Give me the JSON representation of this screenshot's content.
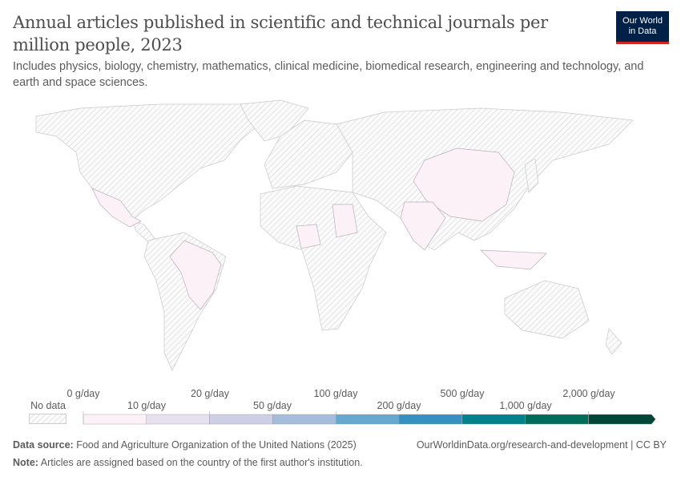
{
  "header": {
    "title": "Annual articles published in scientific and technical journals per million people, 2023",
    "subtitle": "Includes physics, biology, chemistry, mathematics, clinical medicine, biomedical research, engineering and technology, and earth and space sciences.",
    "logo": [
      "Our World",
      "in Data"
    ]
  },
  "map": {
    "no_data_pattern": "hatched-grey",
    "data_color": "#fdf1f8",
    "countries_with_data": [
      "Mexico",
      "Brazil",
      "Nigeria",
      "Sudan",
      "India",
      "China",
      "Indonesia"
    ]
  },
  "legend": {
    "no_data": "No data",
    "upper_labels": [
      "0 g/day",
      "20 g/day",
      "100 g/day",
      "500 g/day",
      "2,000 g/day"
    ],
    "lower_labels": [
      "10 g/day",
      "50 g/day",
      "200 g/day",
      "1,000 g/day"
    ],
    "colors": [
      "#fdf1f8",
      "#e6e0ef",
      "#cccfe5",
      "#a6bcdb",
      "#67a8cf",
      "#3690c0",
      "#02818a",
      "#016c59",
      "#014636"
    ]
  },
  "footer": {
    "source_label": "Data source:",
    "source": "Food and Agriculture Organization of the United Nations (2025)",
    "note_label": "Note:",
    "note": "Articles are assigned based on the country of the first author's institution.",
    "url": "OurWorldinData.org/research-and-development | CC BY"
  }
}
